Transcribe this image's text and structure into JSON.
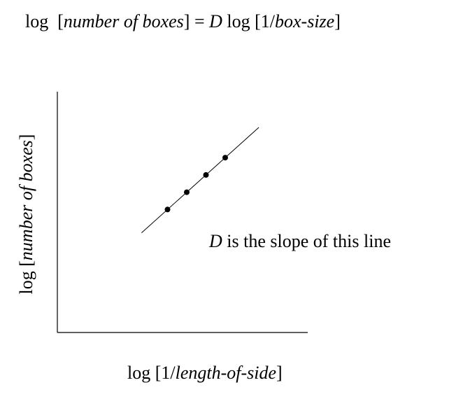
{
  "equation": {
    "log_a": "log",
    "open_a": "[",
    "number_of_boxes": "number of boxes",
    "close_a": "]",
    "equals": "=",
    "D": "D",
    "log_b": "log",
    "open_b": "[1/",
    "box_size": "box-size",
    "close_b": "]"
  },
  "y_axis_label": {
    "prefix": "log [",
    "italic": "number of boxes",
    "suffix": "]"
  },
  "x_axis_label": {
    "prefix": "log [1/",
    "italic": "length-of-side",
    "suffix": "]"
  },
  "annotation": {
    "D": "D",
    "rest": "is the slope of this line"
  },
  "chart_data": {
    "type": "scatter",
    "points": [
      {
        "x": 1.0,
        "y": 1.0
      },
      {
        "x": 2.0,
        "y": 2.0
      },
      {
        "x": 3.0,
        "y": 3.0
      },
      {
        "x": 4.0,
        "y": 4.0
      }
    ],
    "fit_line": {
      "x_start": -0.35,
      "x_end": 5.75
    },
    "grid": false
  }
}
